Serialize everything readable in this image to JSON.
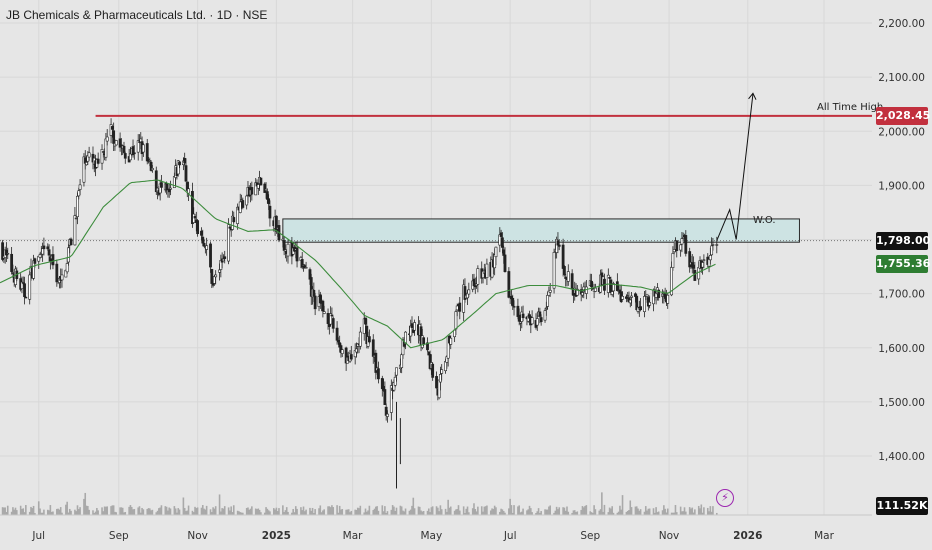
{
  "header": {
    "title": "JB Chemicals & Pharmaceuticals Ltd. · 1D · NSE"
  },
  "chart_data": {
    "type": "candlestick",
    "title": "JB Chemicals & Pharmaceuticals Ltd. · 1D · NSE",
    "symbol": "JB Chemicals & Pharmaceuticals Ltd.",
    "interval": "1D",
    "exchange": "NSE",
    "ylim": [
      1330,
      2230
    ],
    "y_ticks": [
      1400,
      1500,
      1600,
      1700,
      1800,
      1900,
      2000,
      2100,
      2200
    ],
    "y_tick_labels": [
      "1,400.00",
      "1,500.00",
      "1,600.00",
      "1,700.00",
      "1,800.00",
      "1,900.00",
      "2,000.00",
      "2,100.00",
      "2,200.00"
    ],
    "x_ticks": [
      "Jul",
      "Sep",
      "Nov",
      "2025",
      "Mar",
      "May",
      "Jul",
      "Sep",
      "Nov",
      "2026",
      "Mar"
    ],
    "grid": true,
    "price_series": {
      "name": "close",
      "anchors": [
        [
          "2024-06-01",
          1790
        ],
        [
          "2024-06-10",
          1745
        ],
        [
          "2024-06-20",
          1700
        ],
        [
          "2024-06-28",
          1760
        ],
        [
          "2024-07-08",
          1775
        ],
        [
          "2024-07-18",
          1715
        ],
        [
          "2024-07-26",
          1800
        ],
        [
          "2024-08-06",
          1955
        ],
        [
          "2024-08-16",
          1930
        ],
        [
          "2024-08-26",
          2000
        ],
        [
          "2024-09-06",
          1955
        ],
        [
          "2024-09-18",
          1975
        ],
        [
          "2024-09-30",
          1900
        ],
        [
          "2024-10-10",
          1880
        ],
        [
          "2024-10-20",
          1960
        ],
        [
          "2024-10-28",
          1840
        ],
        [
          "2024-11-06",
          1800
        ],
        [
          "2024-11-13",
          1720
        ],
        [
          "2024-11-20",
          1760
        ],
        [
          "2024-11-28",
          1845
        ],
        [
          "2024-12-09",
          1880
        ],
        [
          "2024-12-20",
          1905
        ],
        [
          "2024-12-30",
          1835
        ],
        [
          "2025-01-10",
          1780
        ],
        [
          "2025-01-20",
          1760
        ],
        [
          "2025-01-30",
          1690
        ],
        [
          "2025-02-10",
          1660
        ],
        [
          "2025-02-20",
          1600
        ],
        [
          "2025-02-28",
          1570
        ],
        [
          "2025-03-10",
          1640
        ],
        [
          "2025-03-20",
          1560
        ],
        [
          "2025-03-28",
          1480
        ],
        [
          "2025-04-04",
          1560
        ],
        [
          "2025-04-10",
          1610
        ],
        [
          "2025-04-20",
          1640
        ],
        [
          "2025-04-28",
          1590
        ],
        [
          "2025-05-06",
          1520
        ],
        [
          "2025-05-15",
          1620
        ],
        [
          "2025-05-26",
          1700
        ],
        [
          "2025-06-06",
          1730
        ],
        [
          "2025-06-16",
          1745
        ],
        [
          "2025-06-24",
          1800
        ],
        [
          "2025-06-30",
          1710
        ],
        [
          "2025-07-08",
          1665
        ],
        [
          "2025-07-20",
          1640
        ],
        [
          "2025-07-31",
          1690
        ],
        [
          "2025-08-06",
          1795
        ],
        [
          "2025-08-12",
          1745
        ],
        [
          "2025-08-20",
          1695
        ],
        [
          "2025-09-01",
          1720
        ],
        [
          "2025-09-15",
          1720
        ],
        [
          "2025-10-01",
          1680
        ],
        [
          "2025-10-15",
          1690
        ],
        [
          "2025-11-01",
          1700
        ],
        [
          "2025-11-05",
          1790
        ],
        [
          "2025-11-12",
          1800
        ],
        [
          "2025-11-20",
          1735
        ],
        [
          "2025-12-01",
          1760
        ],
        [
          "2025-12-08",
          1798
        ]
      ]
    },
    "moving_average": {
      "anchors": [
        [
          "2024-06-01",
          1720
        ],
        [
          "2024-06-28",
          1752
        ],
        [
          "2024-07-26",
          1768
        ],
        [
          "2024-08-20",
          1860
        ],
        [
          "2024-09-10",
          1905
        ],
        [
          "2024-10-01",
          1910
        ],
        [
          "2024-10-20",
          1895
        ],
        [
          "2024-11-15",
          1838
        ],
        [
          "2024-12-10",
          1815
        ],
        [
          "2024-12-31",
          1818
        ],
        [
          "2025-01-15",
          1792
        ],
        [
          "2025-02-01",
          1760
        ],
        [
          "2025-02-20",
          1710
        ],
        [
          "2025-03-10",
          1660
        ],
        [
          "2025-03-28",
          1640
        ],
        [
          "2025-04-15",
          1600
        ],
        [
          "2025-05-10",
          1615
        ],
        [
          "2025-06-01",
          1660
        ],
        [
          "2025-06-20",
          1700
        ],
        [
          "2025-07-15",
          1715
        ],
        [
          "2025-08-05",
          1715
        ],
        [
          "2025-08-25",
          1705
        ],
        [
          "2025-09-15",
          1718
        ],
        [
          "2025-10-10",
          1712
        ],
        [
          "2025-10-31",
          1700
        ],
        [
          "2025-11-20",
          1735
        ],
        [
          "2025-12-08",
          1755.36
        ]
      ]
    },
    "all_time_high": 2028.45,
    "all_time_high_label": "All Time High",
    "all_time_high_start": "2024-08-14",
    "zone": {
      "low": 1795,
      "high": 1838,
      "start": "2025-01-06",
      "end": "2026-02-10"
    },
    "projection_path": [
      [
        "2025-12-08",
        1798
      ],
      [
        "2025-12-18",
        1855
      ],
      [
        "2025-12-23",
        1800
      ],
      [
        "2026-01-05",
        2070
      ]
    ],
    "projection_label": "W.O.",
    "current_price": 1798.0,
    "current_price_label": "1,798.00",
    "ma_value": 1755.36,
    "ma_label": "1,755.36",
    "ath_label": "2,028.45",
    "volume_label": "111.52K",
    "colors": {
      "up": "#ffffff",
      "down": "#222222",
      "ma": "#3c8c3c",
      "ath_line": "#c2303e",
      "zone_fill": "#cde3e3",
      "badge_current": "#111111",
      "badge_ma": "#2e7d32",
      "badge_ath": "#c2303e",
      "background": "#e6e6e6",
      "grid": "#d8d8d8"
    },
    "icons": {
      "event": "lightning-bolt-icon"
    }
  }
}
